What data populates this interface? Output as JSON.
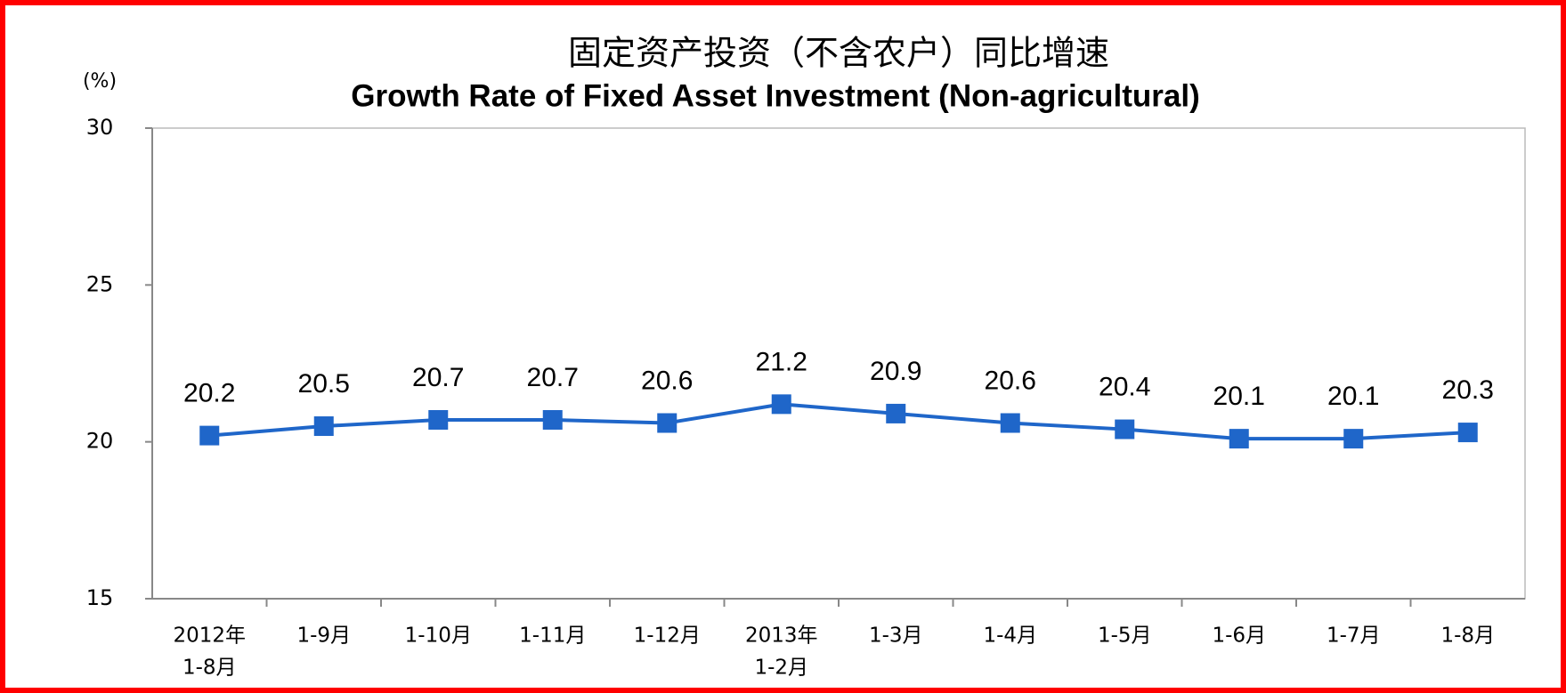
{
  "chart_data": {
    "type": "line",
    "title": "固定资产投资（不含农户）同比增速",
    "subtitle": "Growth Rate of Fixed Asset Investment (Non-agricultural)",
    "y_label": "(%)",
    "categories": [
      [
        "2012年",
        "1-8月"
      ],
      [
        "1-9月"
      ],
      [
        "1-10月"
      ],
      [
        "1-11月"
      ],
      [
        "1-12月"
      ],
      [
        "2013年",
        "1-2月"
      ],
      [
        "1-3月"
      ],
      [
        "1-4月"
      ],
      [
        "1-5月"
      ],
      [
        "1-6月"
      ],
      [
        "1-7月"
      ],
      [
        "1-8月"
      ]
    ],
    "series": [
      {
        "name": "Growth Rate",
        "color": "#1f66c9",
        "values": [
          20.2,
          20.5,
          20.7,
          20.7,
          20.6,
          21.2,
          20.9,
          20.6,
          20.4,
          20.1,
          20.1,
          20.3
        ]
      }
    ],
    "ylim": [
      15,
      30
    ],
    "yticks": [
      15,
      20,
      25,
      30
    ],
    "grid": false
  }
}
